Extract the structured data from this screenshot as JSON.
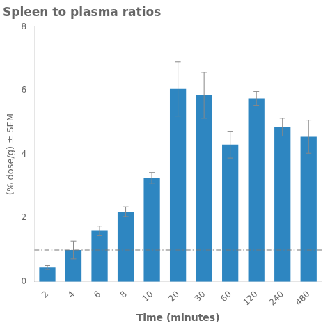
{
  "chart_data": {
    "type": "bar",
    "title": "Spleen to plasma ratios",
    "xlabel": "Time (minutes)",
    "ylabel": "(% dose/g) ± SEM",
    "categories": [
      "2",
      "4",
      "6",
      "8",
      "10",
      "20",
      "30",
      "60",
      "120",
      "240",
      "480"
    ],
    "values": [
      0.45,
      1.0,
      1.6,
      2.2,
      3.25,
      6.05,
      5.85,
      4.3,
      5.75,
      4.85,
      4.55
    ],
    "color": "#2e86c1",
    "error_bars": {
      "values": [
        0.06,
        0.28,
        0.15,
        0.15,
        0.18,
        0.85,
        0.72,
        0.42,
        0.22,
        0.28,
        0.52
      ],
      "color": "#888888"
    },
    "reference_line": {
      "y": 1.0,
      "color": "#777777",
      "line_style": "dashdot"
    },
    "ylim": [
      0,
      8
    ],
    "yticks": [
      0,
      2,
      4,
      6,
      8
    ],
    "grid": false
  }
}
